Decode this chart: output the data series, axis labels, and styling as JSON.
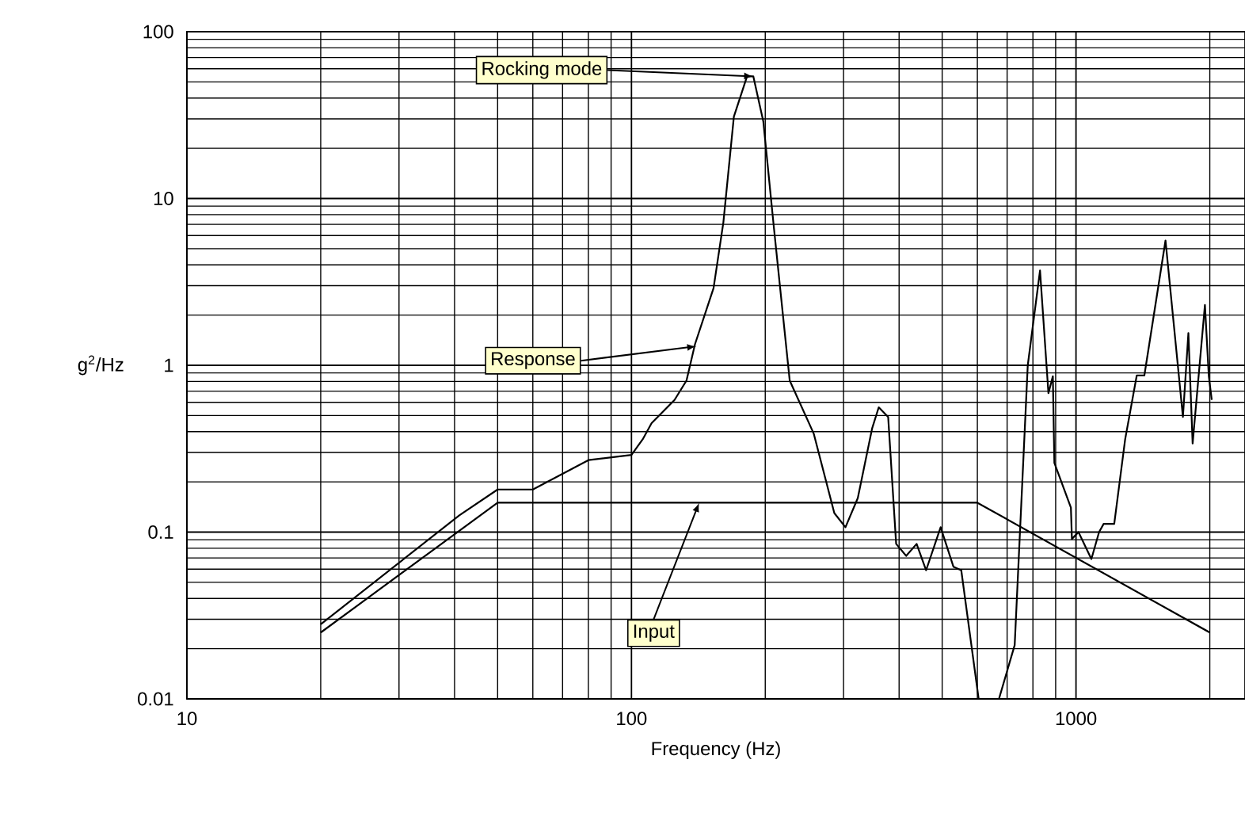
{
  "chart_data": {
    "type": "line",
    "xlabel": "Frequency (Hz)",
    "ylabel": "g$^{2}$/Hz",
    "log": "xy",
    "grid": true,
    "marker": "none",
    "line_style": "solid",
    "xlim": [
      10,
      2400
    ],
    "ylim": [
      0.01,
      100
    ],
    "xticks": [
      10,
      100,
      1000
    ],
    "yticks": [
      0.01,
      0.1,
      1,
      10,
      100
    ],
    "series": [
      {
        "color": "#000000",
        "x": [
          20,
          50,
          600,
          2000
        ],
        "values": [
          0.025,
          0.15,
          0.15,
          0.025
        ]
      },
      {
        "color": "#000000",
        "x": [
          20,
          41,
          50,
          60,
          80,
          100,
          106,
          111,
          125,
          133,
          139,
          153,
          161,
          170,
          182,
          188,
          198,
          209,
          227,
          257,
          286,
          303,
          323,
          348,
          360,
          378,
          394,
          415,
          438,
          460,
          496,
          530,
          552,
          604,
          671,
          728,
          779,
          830,
          867,
          887,
          894,
          974,
          979,
          1013,
          1083,
          1127,
          1154,
          1219,
          1290,
          1370,
          1425,
          1590,
          1740,
          1790,
          1830,
          1950,
          1990,
          2020
        ],
        "values": [
          0.028,
          0.126,
          0.18,
          0.18,
          0.27,
          0.29,
          0.36,
          0.45,
          0.62,
          0.81,
          1.34,
          2.9,
          7.2,
          31,
          54,
          54,
          29,
          6.8,
          0.81,
          0.39,
          0.13,
          0.107,
          0.16,
          0.42,
          0.56,
          0.49,
          0.085,
          0.072,
          0.085,
          0.059,
          0.107,
          0.062,
          0.059,
          0.01,
          0.01,
          0.021,
          1.0,
          3.7,
          0.68,
          0.86,
          0.26,
          0.14,
          0.091,
          0.1,
          0.069,
          0.1,
          0.112,
          0.112,
          0.36,
          0.87,
          0.87,
          5.6,
          0.49,
          1.56,
          0.34,
          2.3,
          0.86,
          0.62
        ]
      }
    ],
    "annotations": [
      {
        "text": "Rocking mode",
        "x": 188,
        "y": 54
      },
      {
        "text": "Response",
        "x": 140,
        "y": 1.3
      },
      {
        "text": "Input",
        "x": 142,
        "y": 0.15
      }
    ]
  }
}
